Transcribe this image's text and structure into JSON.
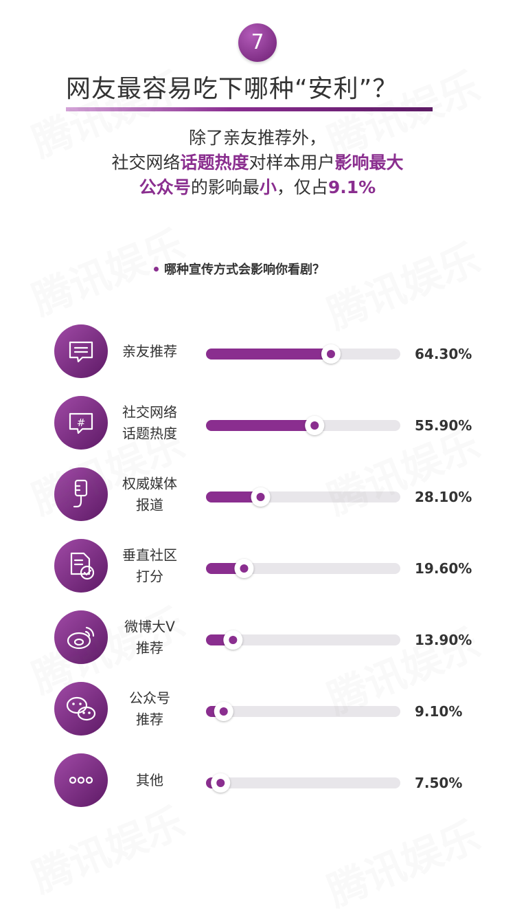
{
  "header": {
    "number": "7",
    "title": "网友最容易吃下哪种“安利”？"
  },
  "summary": {
    "line1": "除了亲友推荐外，",
    "line2_a": "社交网络",
    "line2_b": "话题热度",
    "line2_c": "对样本用户",
    "line2_d": "影响最大",
    "line3_a": "公众号",
    "line3_b": "的影响最",
    "line3_c": "小",
    "line3_d": "，仅占",
    "line3_e": "9.1%"
  },
  "question": "哪种宣传方式会影响你看剧？",
  "watermark": "腾讯娱乐",
  "colors": {
    "accent": "#8a2e8f",
    "track": "#e8e6ea",
    "icon_gradient_light": "#a04aa6",
    "icon_gradient_dark": "#5e1a66"
  },
  "chart_data": {
    "type": "bar",
    "orientation": "horizontal",
    "xlim": [
      0,
      100
    ],
    "categories": [
      {
        "label": [
          "亲友推荐"
        ],
        "icon": "chat-bubble-icon"
      },
      {
        "label": [
          "社交网络",
          "话题热度"
        ],
        "icon": "hashtag-bubble-icon"
      },
      {
        "label": [
          "权威媒体",
          "报道"
        ],
        "icon": "microphone-icon"
      },
      {
        "label": [
          "垂直社区",
          "打分"
        ],
        "icon": "document-check-icon"
      },
      {
        "label": [
          "微博大V",
          "推荐"
        ],
        "icon": "weibo-icon"
      },
      {
        "label": [
          "公众号",
          "推荐"
        ],
        "icon": "wechat-icon"
      },
      {
        "label": [
          "其他"
        ],
        "icon": "more-dots-icon"
      }
    ],
    "values": [
      64.3,
      55.9,
      28.1,
      19.6,
      13.9,
      9.1,
      7.5
    ],
    "value_labels": [
      "64.30%",
      "55.90%",
      "28.10%",
      "19.60%",
      "13.90%",
      "9.10%",
      "7.50%"
    ]
  }
}
